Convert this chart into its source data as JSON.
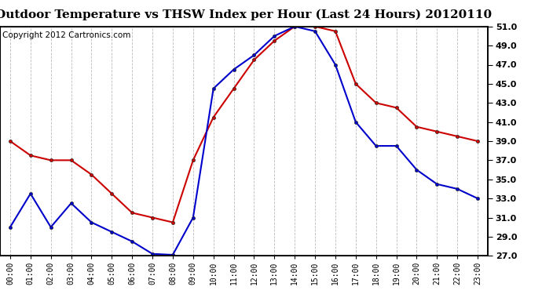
{
  "title": "Outdoor Temperature vs THSW Index per Hour (Last 24 Hours) 20120110",
  "copyright": "Copyright 2012 Cartronics.com",
  "hours": [
    "00:00",
    "01:00",
    "02:00",
    "03:00",
    "04:00",
    "05:00",
    "06:00",
    "07:00",
    "08:00",
    "09:00",
    "10:00",
    "11:00",
    "12:00",
    "13:00",
    "14:00",
    "15:00",
    "16:00",
    "17:00",
    "18:00",
    "19:00",
    "20:00",
    "21:00",
    "22:00",
    "23:00"
  ],
  "temp_red": [
    39.0,
    37.5,
    37.0,
    37.0,
    35.5,
    33.5,
    31.5,
    31.0,
    30.5,
    37.0,
    41.5,
    44.5,
    47.5,
    49.5,
    51.0,
    51.0,
    50.5,
    45.0,
    43.0,
    42.5,
    40.5,
    40.0,
    39.5,
    39.0
  ],
  "thsw_blue": [
    30.0,
    33.5,
    30.0,
    32.5,
    30.5,
    29.5,
    28.5,
    27.2,
    27.1,
    31.0,
    44.5,
    46.5,
    48.0,
    50.0,
    51.0,
    50.5,
    47.0,
    41.0,
    38.5,
    38.5,
    36.0,
    34.5,
    34.0,
    33.0
  ],
  "ylim": [
    27.0,
    51.0
  ],
  "yticks": [
    27.0,
    29.0,
    31.0,
    33.0,
    35.0,
    37.0,
    39.0,
    41.0,
    43.0,
    45.0,
    47.0,
    49.0,
    51.0
  ],
  "red_color": "#cc0000",
  "blue_color": "#0000cc",
  "grid_color": "#bbbbbb",
  "bg_color": "#ffffff",
  "title_fontsize": 11,
  "copyright_fontsize": 7.5
}
